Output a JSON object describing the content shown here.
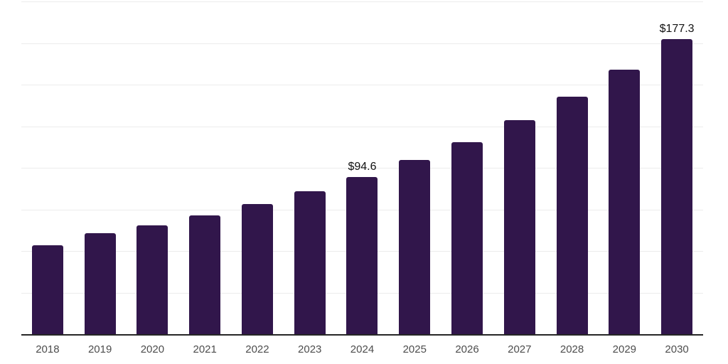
{
  "chart_data": {
    "type": "bar",
    "title": "",
    "xlabel": "",
    "ylabel": "",
    "categories": [
      "2018",
      "2019",
      "2020",
      "2021",
      "2022",
      "2023",
      "2024",
      "2025",
      "2026",
      "2027",
      "2028",
      "2029",
      "2030"
    ],
    "values": [
      53.6,
      60.5,
      65.2,
      71.4,
      78.4,
      85.9,
      94.6,
      104.5,
      115.6,
      128.7,
      142.7,
      159.1,
      177.3
    ],
    "value_labels": [
      "",
      "",
      "",
      "",
      "",
      "",
      "$94.6",
      "",
      "",
      "",
      "",
      "",
      "$177.3"
    ],
    "ylim": [
      0,
      200
    ],
    "gridline_step": 25,
    "grid": true,
    "legend": false,
    "y_tick_labels_visible": false,
    "colors": {
      "bar_fill": "#31164b",
      "gridline": "#ececec",
      "axis_line": "#262626",
      "x_tick_label": "#4d4d4d",
      "value_label": "#111111",
      "background": "#ffffff"
    }
  }
}
